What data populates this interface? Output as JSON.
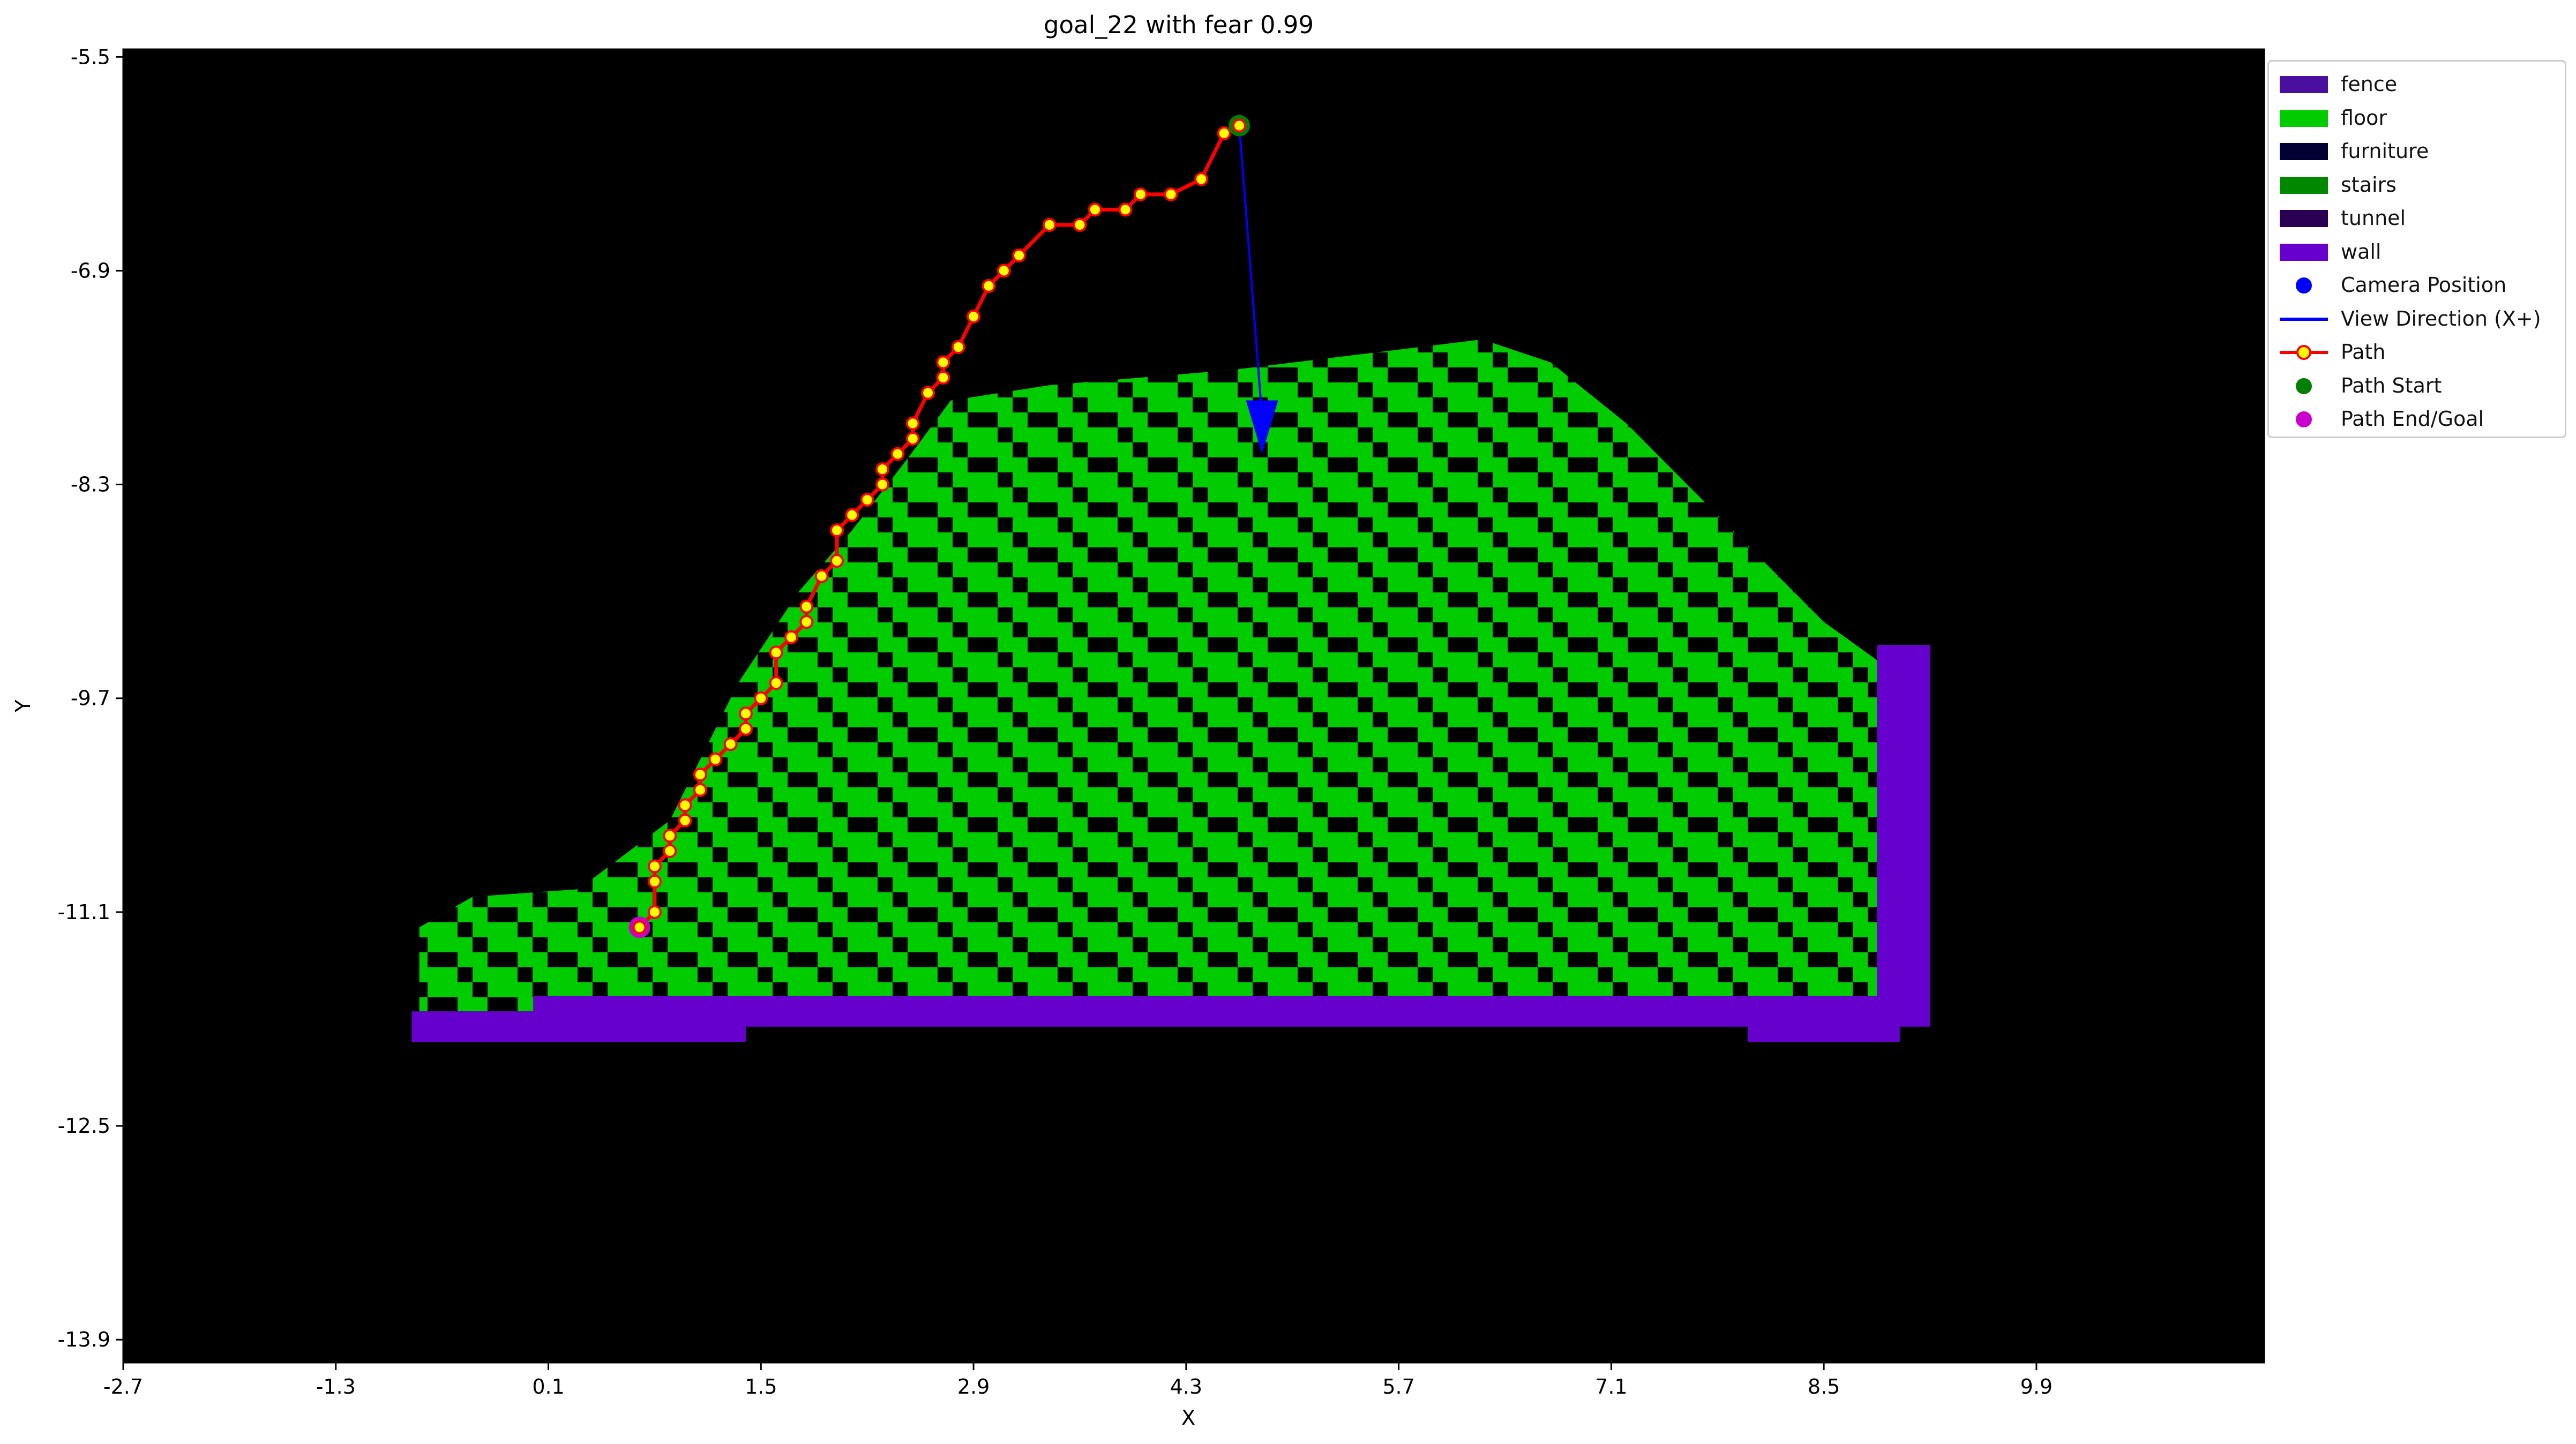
{
  "chart_data": {
    "type": "heatmap",
    "title": "goal_22 with fear 0.99",
    "xlabel": "X",
    "ylabel": "Y",
    "xlim": [
      -2.7,
      11.4
    ],
    "ylim": [
      -14.05,
      -5.45
    ],
    "xticks": [
      -2.7,
      -1.3,
      0.1,
      1.5,
      2.9,
      4.3,
      5.7,
      7.1,
      8.5,
      9.9
    ],
    "yticks": [
      -5.5,
      -6.9,
      -8.3,
      -9.7,
      -11.1,
      -12.5,
      -13.9
    ],
    "xtick_labels": [
      "-2.7",
      "-1.3",
      "0.1",
      "1.5",
      "2.9",
      "4.3",
      "5.7",
      "7.1",
      "8.5",
      "9.9"
    ],
    "ytick_labels": [
      "-5.5",
      "-6.9",
      "-8.3",
      "-9.7",
      "-11.1",
      "-12.5",
      "-13.9"
    ],
    "grid": false,
    "legend_position": "outside-upper-right",
    "background_color": "#000000",
    "classes": [
      {
        "name": "fence",
        "color": "#4b0fa0"
      },
      {
        "name": "floor",
        "color": "#00cc00"
      },
      {
        "name": "furniture",
        "color": "#000033"
      },
      {
        "name": "stairs",
        "color": "#008800"
      },
      {
        "name": "tunnel",
        "color": "#2a0055"
      },
      {
        "name": "wall",
        "color": "#6600cc"
      }
    ],
    "floor_region": [
      [
        -0.75,
        -11.2
      ],
      [
        -0.4,
        -11.0
      ],
      [
        0.3,
        -10.95
      ],
      [
        0.9,
        -10.5
      ],
      [
        1.35,
        -9.6
      ],
      [
        1.75,
        -9.0
      ],
      [
        2.1,
        -8.6
      ],
      [
        2.45,
        -8.15
      ],
      [
        2.75,
        -7.75
      ],
      [
        3.4,
        -7.65
      ],
      [
        4.6,
        -7.55
      ],
      [
        6.25,
        -7.35
      ],
      [
        6.7,
        -7.5
      ],
      [
        7.2,
        -7.9
      ],
      [
        7.6,
        -8.3
      ],
      [
        8.1,
        -8.8
      ],
      [
        8.5,
        -9.2
      ],
      [
        8.85,
        -9.45
      ],
      [
        8.85,
        -11.75
      ],
      [
        -0.75,
        -11.75
      ]
    ],
    "wall_bottom": [
      [
        -0.8,
        -11.75
      ],
      [
        0.0,
        -11.75
      ],
      [
        1.4,
        -11.75
      ],
      [
        1.4,
        -11.95
      ],
      [
        -0.8,
        -11.95
      ]
    ],
    "wall_strip": [
      [
        0.0,
        -11.65
      ],
      [
        9.2,
        -11.65
      ],
      [
        9.2,
        -11.85
      ],
      [
        0.0,
        -11.85
      ]
    ],
    "wall_right": [
      [
        8.85,
        -9.35
      ],
      [
        9.2,
        -9.35
      ],
      [
        9.2,
        -11.75
      ],
      [
        8.85,
        -11.75
      ]
    ],
    "wall_bottom_right": [
      [
        8.0,
        -11.75
      ],
      [
        9.0,
        -11.75
      ],
      [
        9.0,
        -11.95
      ],
      [
        8.0,
        -11.95
      ]
    ],
    "camera_position": {
      "x": 4.65,
      "y": -5.95
    },
    "view_direction": {
      "dx": 0.15,
      "dy": -2.15
    },
    "path": {
      "x": [
        0.7,
        0.8,
        0.8,
        0.8,
        0.9,
        0.9,
        1.0,
        1.0,
        1.1,
        1.1,
        1.2,
        1.3,
        1.4,
        1.4,
        1.5,
        1.6,
        1.6,
        1.7,
        1.8,
        1.8,
        1.9,
        2.0,
        2.0,
        2.1,
        2.2,
        2.3,
        2.3,
        2.4,
        2.5,
        2.5,
        2.6,
        2.7,
        2.7,
        2.8,
        2.9,
        3.0,
        3.1,
        3.2,
        3.4,
        3.6,
        3.7,
        3.9,
        4.0,
        4.2,
        4.4,
        4.55,
        4.65
      ],
      "y": [
        -11.2,
        -11.1,
        -10.9,
        -10.8,
        -10.7,
        -10.6,
        -10.5,
        -10.4,
        -10.3,
        -10.2,
        -10.1,
        -10.0,
        -9.9,
        -9.8,
        -9.7,
        -9.6,
        -9.4,
        -9.3,
        -9.2,
        -9.1,
        -8.9,
        -8.8,
        -8.6,
        -8.5,
        -8.4,
        -8.3,
        -8.2,
        -8.1,
        -8.0,
        -7.9,
        -7.7,
        -7.6,
        -7.5,
        -7.4,
        -7.2,
        -7.0,
        -6.9,
        -6.8,
        -6.6,
        -6.6,
        -6.5,
        -6.5,
        -6.4,
        -6.4,
        -6.3,
        -6.0,
        -5.95
      ]
    },
    "path_start": {
      "x": 4.65,
      "y": -5.95
    },
    "path_end": {
      "x": 0.7,
      "y": -11.2
    },
    "legend": [
      {
        "label": "fence",
        "kind": "patch",
        "color": "#4b0fa0"
      },
      {
        "label": "floor",
        "kind": "patch",
        "color": "#00cc00"
      },
      {
        "label": "furniture",
        "kind": "patch",
        "color": "#000033"
      },
      {
        "label": "stairs",
        "kind": "patch",
        "color": "#008800"
      },
      {
        "label": "tunnel",
        "kind": "patch",
        "color": "#2a0055"
      },
      {
        "label": "wall",
        "kind": "patch",
        "color": "#6600cc"
      },
      {
        "label": "Camera Position",
        "kind": "dot",
        "color": "#0000ff"
      },
      {
        "label": "View Direction (X+)",
        "kind": "line",
        "color": "#0000ff"
      },
      {
        "label": "Path",
        "kind": "path",
        "color": "#ff0000",
        "fill": "#ffff00"
      },
      {
        "label": "Path Start",
        "kind": "dot",
        "color": "#008000"
      },
      {
        "label": "Path End/Goal",
        "kind": "dot",
        "color": "#cc00cc"
      }
    ]
  }
}
